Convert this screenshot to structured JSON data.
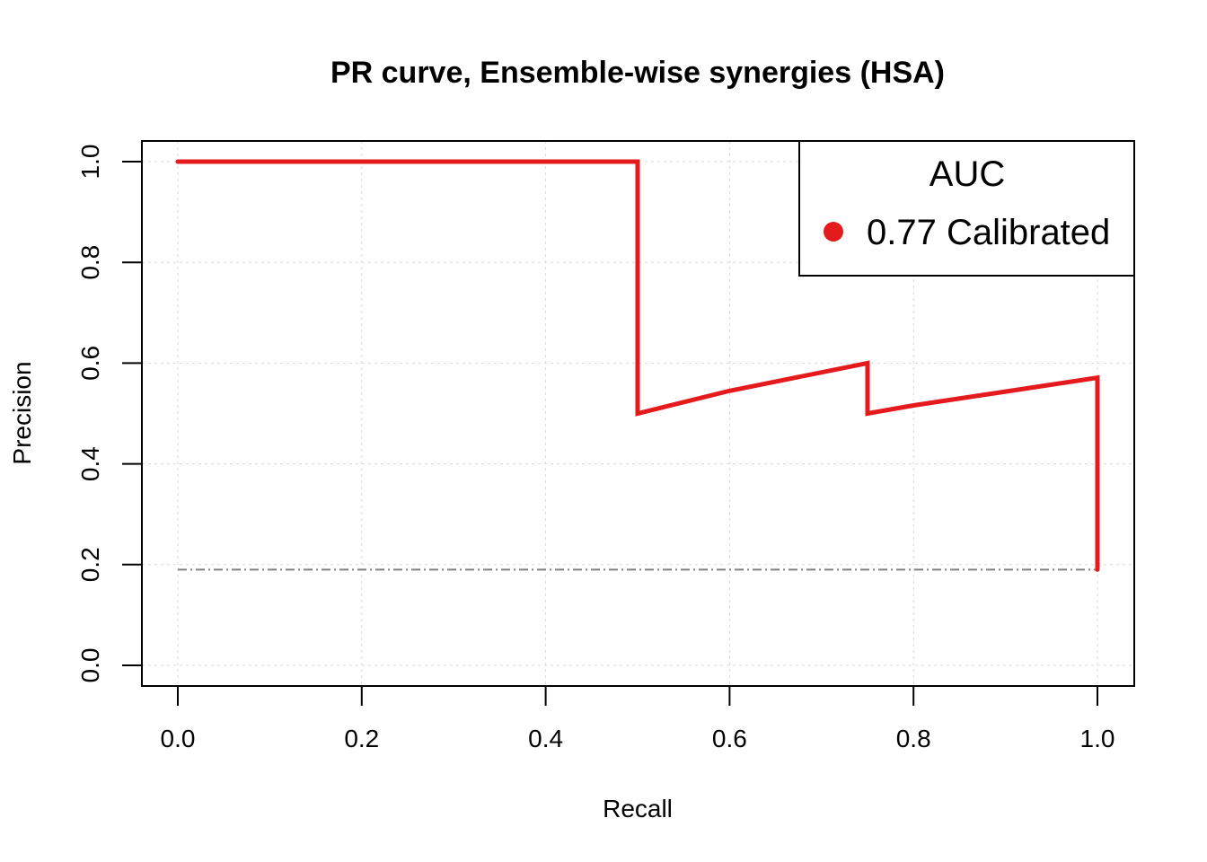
{
  "chart_data": {
    "type": "line",
    "title": "PR curve, Ensemble-wise synergies (HSA)",
    "xlabel": "Recall",
    "ylabel": "Precision",
    "xlim": [
      0,
      1
    ],
    "ylim": [
      0,
      1
    ],
    "xticks": [
      "0.0",
      "0.2",
      "0.4",
      "0.6",
      "0.8",
      "1.0"
    ],
    "yticks": [
      "0.0",
      "0.2",
      "0.4",
      "0.6",
      "0.8",
      "1.0"
    ],
    "grid": true,
    "legend": {
      "title": "AUC",
      "position": "top-right",
      "entries": [
        "0.77 Calibrated"
      ]
    },
    "series": [
      {
        "name": "0.77 Calibrated",
        "color": "#e41a1c",
        "x": [
          0.0,
          0.5,
          0.5,
          0.6,
          0.75,
          0.75,
          0.8,
          1.0,
          1.0
        ],
        "y": [
          1.0,
          1.0,
          0.5,
          0.545,
          0.6,
          0.5,
          0.516,
          0.571,
          0.19
        ]
      }
    ],
    "baseline": {
      "color": "#808080",
      "style": "dot-dash",
      "x": [
        0.0,
        1.0
      ],
      "y": [
        0.19,
        0.19
      ]
    }
  }
}
